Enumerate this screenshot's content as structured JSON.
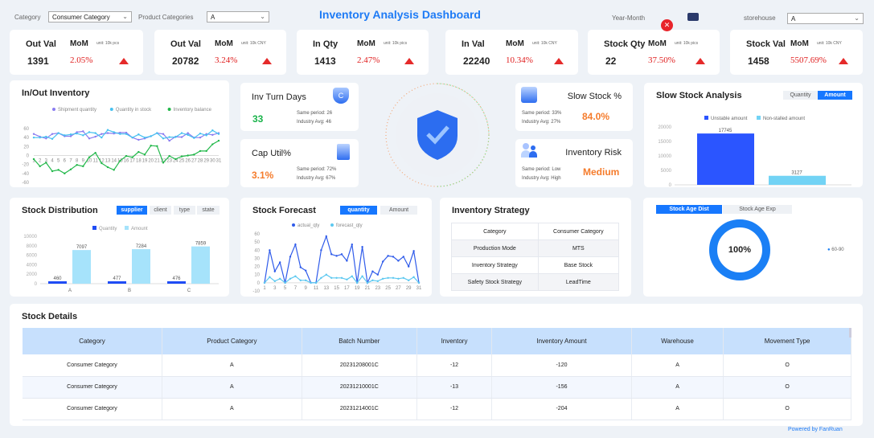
{
  "header": {
    "title": "Inventory Analysis Dashboard",
    "category_label": "Category",
    "category_value": "Consumer Category",
    "product_label": "Product Categories",
    "product_value": "A",
    "yearmonth_label": "Year-Month",
    "storehouse_label": "storehouse",
    "storehouse_value": "A"
  },
  "kpis": [
    {
      "title": "Out Val",
      "mom": "MoM",
      "unit": "unit:  10k pcs",
      "value": "1391",
      "pct": "2.05%"
    },
    {
      "title": "Out Val",
      "mom": "MoM",
      "unit": "unit:  10k CNY",
      "value": "20782",
      "pct": "3.24%"
    },
    {
      "title": "In Qty",
      "mom": "MoM",
      "unit": "unit:  10k pics",
      "value": "1413",
      "pct": "2.47%"
    },
    {
      "title": "In Val",
      "mom": "MoM",
      "unit": "unit:  10k CNY",
      "value": "22240",
      "pct": "10.34%"
    },
    {
      "title": "Stock Qty",
      "mom": "MoM",
      "unit": "unit:  10k pics",
      "value": "22",
      "pct": "37.50%"
    },
    {
      "title": "Stock Val",
      "mom": "MoM",
      "unit": "unit:  10k CNY",
      "value": "1458",
      "pct": "5507.69%"
    }
  ],
  "metrics": {
    "turn": {
      "title": "Inv Turn Days",
      "value": "33",
      "same": "Same period:  26",
      "avg": "Industry Avg:  46"
    },
    "cap": {
      "title": "Cap Util%",
      "value": "3.1%",
      "same": "Same period:  72%",
      "avg": "Industry Avg:  67%"
    },
    "slow": {
      "title": "Slow Stock %",
      "value": "84.0%",
      "same": "Same period:  33%",
      "avg": "Industry Avg:  27%"
    },
    "risk": {
      "title": "Inventory Risk",
      "value": "Medium",
      "same": "Same period:  Low",
      "avg": "Industry Avg:  High"
    }
  },
  "colors": {
    "accent": "#1677ff",
    "up": "#e52a2a",
    "green": "#19b34a",
    "orange": "#f57c2c"
  },
  "chart_data": [
    {
      "id": "inout",
      "type": "line",
      "title": "In/Out Inventory",
      "categories": [
        1,
        2,
        3,
        4,
        5,
        6,
        7,
        8,
        9,
        10,
        11,
        12,
        13,
        14,
        15,
        16,
        17,
        18,
        19,
        20,
        21,
        22,
        23,
        24,
        25,
        26,
        27,
        28,
        29,
        30,
        31
      ],
      "ylim": [
        -60,
        60
      ],
      "yticks": [
        60,
        40,
        20,
        0,
        -20,
        -40,
        -60
      ],
      "legend": "top",
      "series": [
        {
          "name": "Shipment quantity",
          "color": "#8a7cf0",
          "values": [
            48,
            42,
            38,
            48,
            50,
            43,
            43,
            52,
            54,
            38,
            42,
            48,
            50,
            49,
            51,
            51,
            40,
            35,
            38,
            43,
            50,
            48,
            33,
            42,
            41,
            50,
            40,
            40,
            48,
            46,
            50
          ]
        },
        {
          "name": "Quantity in stock",
          "color": "#47c1f0",
          "values": [
            40,
            40,
            42,
            37,
            50,
            45,
            47,
            49,
            45,
            52,
            50,
            40,
            57,
            52,
            48,
            48,
            40,
            47,
            40,
            43,
            50,
            38,
            41,
            41,
            50,
            46,
            39,
            49,
            45,
            56,
            48
          ]
        },
        {
          "name": "Inventory balance",
          "color": "#22b84a",
          "values": [
            -8,
            -24,
            -16,
            -35,
            -32,
            -40,
            -31,
            -21,
            -24,
            -4,
            6,
            -17,
            -26,
            -32,
            -12,
            -1,
            -4,
            8,
            2,
            22,
            21,
            -16,
            -1,
            -8,
            -2,
            0,
            2,
            10,
            10,
            25,
            33
          ]
        }
      ]
    },
    {
      "id": "slow",
      "type": "bar",
      "title": "Slow Stock Analysis",
      "tabs": [
        "Quantity",
        "Amount"
      ],
      "active_tab": "Amount",
      "ylim": [
        0,
        20000
      ],
      "yticks": [
        20000,
        15000,
        10000,
        5000,
        0
      ],
      "legend": "top",
      "series": [
        {
          "name": "Unstable amount",
          "color": "#2b55ff",
          "value": 17745
        },
        {
          "name": "Non-stalled amount",
          "color": "#72d3f5",
          "value": 3127
        }
      ]
    },
    {
      "id": "dist",
      "type": "bar",
      "title": "Stock Distribution",
      "tabs": [
        "supplier",
        "client",
        "type",
        "state"
      ],
      "active_tab": "supplier",
      "categories": [
        "A",
        "B",
        "C"
      ],
      "ylim": [
        0,
        10000
      ],
      "yticks": [
        10000,
        8000,
        6000,
        4000,
        2000,
        0
      ],
      "legend": "top",
      "series": [
        {
          "name": "Quantity",
          "color": "#1f4cf5",
          "values": [
            460,
            477,
            476
          ]
        },
        {
          "name": "Amount",
          "color": "#a6e3fb",
          "values": [
            7097,
            7284,
            7859
          ]
        }
      ]
    },
    {
      "id": "forecast",
      "type": "line",
      "title": "Stock Forecast",
      "tabs": [
        "quantity",
        "Amount"
      ],
      "active_tab": "quantity",
      "categories": [
        1,
        2,
        3,
        4,
        5,
        6,
        7,
        8,
        9,
        10,
        11,
        12,
        13,
        14,
        15,
        16,
        17,
        18,
        19,
        20,
        21,
        22,
        23,
        24,
        25,
        26,
        27,
        28,
        29,
        30,
        31
      ],
      "xticks": [
        1,
        3,
        5,
        7,
        9,
        11,
        13,
        15,
        17,
        19,
        21,
        23,
        25,
        27,
        29,
        31
      ],
      "ylim": [
        -10,
        60
      ],
      "yticks": [
        60,
        50,
        40,
        30,
        20,
        10,
        0,
        -10
      ],
      "legend": "top",
      "series": [
        {
          "name": "actual_qty",
          "color": "#2f5bea",
          "values": [
            0,
            40,
            14,
            25,
            0,
            32,
            47,
            19,
            15,
            0,
            0,
            40,
            57,
            35,
            33,
            35,
            27,
            47,
            0,
            44,
            0,
            14,
            10,
            26,
            33,
            32,
            27,
            32,
            20,
            39,
            0
          ]
        },
        {
          "name": "forecast_qty",
          "color": "#5cc8f0",
          "values": [
            0,
            7,
            2,
            5,
            0,
            5,
            8,
            3,
            3,
            0,
            0,
            6,
            10,
            6,
            6,
            6,
            4,
            8,
            0,
            8,
            0,
            3,
            2,
            5,
            6,
            6,
            5,
            6,
            3,
            7,
            0
          ]
        }
      ]
    },
    {
      "id": "age",
      "type": "pie",
      "tabs": [
        "Stock Age Dist",
        "Stock Age Exp"
      ],
      "active_tab": "Stock Age Dist",
      "center_label": "100%",
      "slices": [
        {
          "name": "60-90",
          "value": 100,
          "color": "#1a7ff5"
        }
      ],
      "legend": "right"
    }
  ],
  "strategy": {
    "title": "Inventory Strategy",
    "rows": [
      [
        "Category",
        "Consumer Category"
      ],
      [
        "Production Mode",
        "MTS"
      ],
      [
        "Inventory Strategy",
        "Base Stock"
      ],
      [
        "Safety Stock Strategy",
        "LeadTime"
      ]
    ]
  },
  "details": {
    "title": "Stock Details",
    "columns": [
      "Category",
      "Product Category",
      "Batch Number",
      "Inventory",
      "Inventory Amount",
      "Warehouse",
      "Movement Type"
    ],
    "rows": [
      [
        "Consumer Category",
        "A",
        "20231208001C",
        "-12",
        "-120",
        "A",
        "O"
      ],
      [
        "Consumer Category",
        "A",
        "20231210001C",
        "-13",
        "-156",
        "A",
        "O"
      ],
      [
        "Consumer Category",
        "A",
        "20231214001C",
        "-12",
        "-204",
        "A",
        "O"
      ]
    ]
  },
  "footer": {
    "powered": "Powered by FanRuan"
  }
}
